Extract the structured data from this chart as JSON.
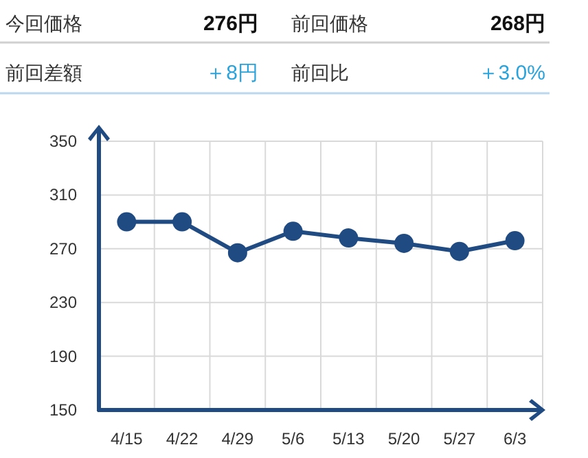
{
  "chart_data": [
    {
      "type": "other",
      "annotations": [
        "今回価格",
        "276円",
        "前回価格",
        "268円",
        "前回差額",
        "＋8円",
        "前回比",
        "＋3.0%"
      ]
    },
    {
      "type": "line",
      "categories": [
        "4/15",
        "4/22",
        "4/29",
        "5/6",
        "5/13",
        "5/20",
        "5/27",
        "6/3"
      ],
      "series": [
        {
          "color": "#1f4b82",
          "values": [
            290,
            290,
            267,
            283,
            278,
            274,
            268,
            276
          ]
        }
      ],
      "ylim": [
        150,
        350
      ],
      "yticks": [
        150,
        190,
        230,
        270,
        310,
        350
      ],
      "grid": true,
      "marker": "circle"
    }
  ]
}
